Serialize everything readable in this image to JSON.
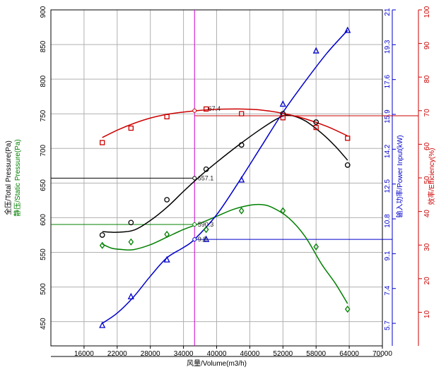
{
  "chart_data": {
    "type": "line",
    "xlabel": "风量/Volume(m3/h)",
    "xlim": [
      10000,
      70000
    ],
    "x_ticks": [
      "16000",
      "22000",
      "28000",
      "34000",
      "40000",
      "46000",
      "52000",
      "58000",
      "64000",
      "70000"
    ],
    "left_axis": {
      "label_total": "全压/Total Pressure(Pa)",
      "label_static": "静压/Static Pressure(Pa)",
      "ylim": [
        415,
        900
      ],
      "ticks": [
        "450",
        "500",
        "550",
        "600",
        "650",
        "700",
        "750",
        "800",
        "850",
        "900"
      ],
      "color_total": "#000000",
      "color_static": "#008000"
    },
    "power_axis": {
      "label": "输入功率/Power Input(kW)",
      "ylim": [
        4.6,
        21.0
      ],
      "ticks": [
        "5.7",
        "7.4",
        "9.1",
        "10.8",
        "12.5",
        "14.2",
        "15.9",
        "17.6",
        "19.3",
        "21"
      ],
      "color": "#0000cc"
    },
    "efficiency_axis": {
      "label": "效率/Efficiency(%)",
      "ylim": [
        0,
        100
      ],
      "ticks": [
        "10",
        "20",
        "30",
        "40",
        "50",
        "60",
        "70",
        "80",
        "90",
        "100"
      ],
      "color": "#cc0000"
    },
    "series": [
      {
        "name": "Total Pressure",
        "axis": "left",
        "color": "#000000",
        "marker": "circle",
        "points": [
          [
            19300,
            575
          ],
          [
            24500,
            593
          ],
          [
            31000,
            626
          ],
          [
            38100,
            670
          ],
          [
            44500,
            705
          ],
          [
            52000,
            750
          ],
          [
            58000,
            738
          ],
          [
            63700,
            676
          ]
        ],
        "curve": [
          [
            19300,
            580
          ],
          [
            22000,
            579
          ],
          [
            25000,
            582
          ],
          [
            28000,
            596
          ],
          [
            31000,
            615
          ],
          [
            34000,
            638
          ],
          [
            37000,
            660
          ],
          [
            40000,
            680
          ],
          [
            44000,
            705
          ],
          [
            48000,
            728
          ],
          [
            51000,
            743
          ],
          [
            53000,
            748
          ],
          [
            56000,
            740
          ],
          [
            59000,
            722
          ],
          [
            61500,
            703
          ],
          [
            63700,
            683
          ]
        ]
      },
      {
        "name": "Static Pressure",
        "axis": "left",
        "color": "#008000",
        "marker": "diamond",
        "points": [
          [
            19300,
            560
          ],
          [
            24500,
            565
          ],
          [
            31000,
            576
          ],
          [
            38100,
            583
          ],
          [
            44500,
            610
          ],
          [
            52000,
            610
          ],
          [
            58000,
            558
          ],
          [
            63700,
            468
          ]
        ],
        "curve": [
          [
            19300,
            562
          ],
          [
            21000,
            556
          ],
          [
            23000,
            554
          ],
          [
            25000,
            554
          ],
          [
            28000,
            561
          ],
          [
            31000,
            572
          ],
          [
            34000,
            583
          ],
          [
            37000,
            592
          ],
          [
            40000,
            602
          ],
          [
            43000,
            612
          ],
          [
            46000,
            618
          ],
          [
            48000,
            619
          ],
          [
            50000,
            615
          ],
          [
            53000,
            600
          ],
          [
            56000,
            573
          ],
          [
            59000,
            533
          ],
          [
            61500,
            505
          ],
          [
            63700,
            476
          ]
        ]
      },
      {
        "name": "Power Input",
        "axis": "power",
        "color": "#0000cc",
        "marker": "triangle",
        "points": [
          [
            19300,
            5.6
          ],
          [
            24500,
            7.0
          ],
          [
            31000,
            8.8
          ],
          [
            38100,
            9.8
          ],
          [
            44500,
            12.7
          ],
          [
            52000,
            16.4
          ],
          [
            58000,
            19.0
          ],
          [
            63700,
            20.0
          ]
        ],
        "curve": [
          [
            19300,
            5.7
          ],
          [
            22000,
            6.2
          ],
          [
            25000,
            7.0
          ],
          [
            28000,
            8.0
          ],
          [
            31000,
            8.9
          ],
          [
            34000,
            9.4
          ],
          [
            36000,
            9.8
          ],
          [
            40000,
            11.0
          ],
          [
            44000,
            12.6
          ],
          [
            48000,
            14.3
          ],
          [
            52000,
            16.0
          ],
          [
            56000,
            17.5
          ],
          [
            60000,
            18.9
          ],
          [
            63700,
            20.0
          ]
        ]
      },
      {
        "name": "Efficiency",
        "axis": "efficiency",
        "color": "#cc0000",
        "marker": "square",
        "points": [
          [
            19300,
            60.5
          ],
          [
            24500,
            64.8
          ],
          [
            31000,
            68.2
          ],
          [
            38100,
            70.5
          ],
          [
            44500,
            69.1
          ],
          [
            52000,
            67.9
          ],
          [
            58000,
            65.0
          ],
          [
            63700,
            61.8
          ]
        ],
        "curve": [
          [
            19300,
            62.0
          ],
          [
            22000,
            64.2
          ],
          [
            25000,
            66.2
          ],
          [
            28000,
            67.8
          ],
          [
            31000,
            68.9
          ],
          [
            34000,
            69.6
          ],
          [
            37000,
            70.1
          ],
          [
            40000,
            70.4
          ],
          [
            44000,
            70.5
          ],
          [
            48000,
            70.2
          ],
          [
            52000,
            69.2
          ],
          [
            56000,
            67.6
          ],
          [
            60000,
            65.3
          ],
          [
            63700,
            62.5
          ]
        ]
      }
    ],
    "reference_lines": [
      {
        "type": "vertical",
        "x": 36000,
        "color": "#cc00cc"
      },
      {
        "type": "horizontal",
        "axis": "efficiency",
        "y": 68.5,
        "color": "#cc0000"
      },
      {
        "type": "horizontal",
        "axis": "left",
        "y": 657.1,
        "color": "#000000"
      },
      {
        "type": "horizontal",
        "axis": "left",
        "y": 590.3,
        "color": "#008000"
      },
      {
        "type": "horizontal",
        "axis": "power",
        "y": 9.8,
        "color": "#0000cc"
      }
    ],
    "annotations": [
      {
        "text": "67.4",
        "x": 38100,
        "axis": "efficiency",
        "y": 70.6
      },
      {
        "text": "657.1",
        "x": 36200,
        "axis": "left",
        "y": 657.1
      },
      {
        "text": "590.3",
        "x": 36200,
        "axis": "left",
        "y": 590.3
      },
      {
        "text": "9.8",
        "x": 36200,
        "axis": "power",
        "y": 9.8
      }
    ]
  }
}
